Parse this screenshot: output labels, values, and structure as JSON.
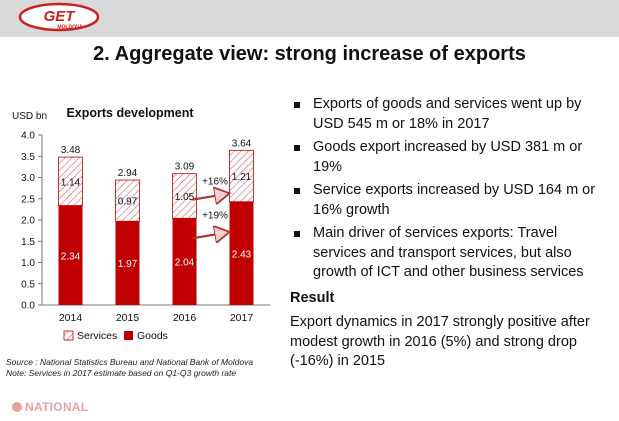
{
  "header": {
    "logo_text": "GET",
    "logo_subtext": "MOLDOVA",
    "title": "2. Aggregate view: strong increase of exports"
  },
  "chart_data": {
    "type": "bar",
    "stacked": true,
    "title": "Exports development",
    "ylabel": "USD bn",
    "ylim": [
      0,
      4
    ],
    "yticks": [
      "0.0",
      "0.5",
      "1.0",
      "1.5",
      "2.0",
      "2.5",
      "3.0",
      "3.5",
      "4.0"
    ],
    "categories": [
      "2014",
      "2015",
      "2016",
      "2017"
    ],
    "totals": [
      "3.48",
      "2.94",
      "3.09",
      "3.64"
    ],
    "series": [
      {
        "name": "Goods",
        "values": [
          2.34,
          1.97,
          2.04,
          2.43
        ],
        "labels": [
          "2.34",
          "1.97",
          "2.04",
          "2.43"
        ],
        "color": "#c00000"
      },
      {
        "name": "Services",
        "values": [
          1.14,
          0.97,
          1.05,
          1.21
        ],
        "labels": [
          "1.14",
          "0.97",
          "1.05",
          "1.21"
        ],
        "color": "#c00000",
        "pattern": "hatched"
      }
    ],
    "annotations": [
      {
        "text": "+16%",
        "series": "Services"
      },
      {
        "text": "+19%",
        "series": "Goods"
      }
    ],
    "legend": [
      "Services",
      "Goods"
    ],
    "legend_position": "bottom"
  },
  "bullets": [
    "Exports of goods and services went up by USD 545 m or 18% in 2017",
    "Goods export increased by USD 381 m or 19%",
    "Service exports increased by USD 164 m or 16% growth",
    "Main driver of services exports: Travel services and transport services, but also growth of ICT and other business services"
  ],
  "result": {
    "heading": "Result",
    "text": "Export dynamics in 2017 strongly positive after modest growth in 2016 (5%) and strong drop (-16%) in 2015"
  },
  "source": {
    "line1": "Source : National Statistics Bureau and National Bank of  Moldova",
    "line2": "Note: Services in 2017 estimate based on Q1-Q3 growth rate"
  },
  "footer": {
    "brand": "NATIONAL"
  },
  "colors": {
    "goods": "#c00000",
    "accent": "#d32f2f",
    "topbar": "#d9d9d9"
  }
}
